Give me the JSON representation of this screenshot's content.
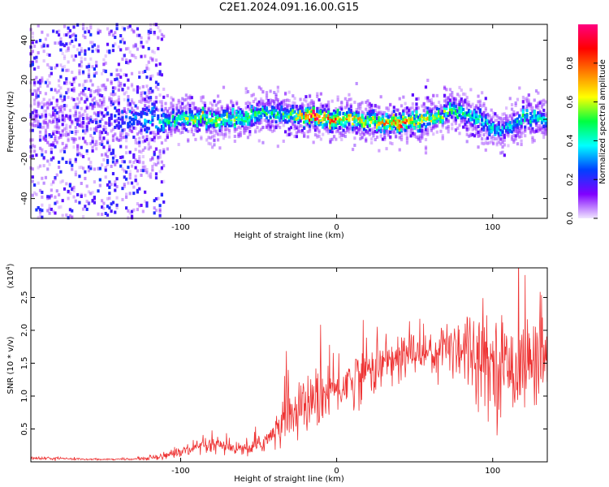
{
  "title": "C2E1.2024.091.16.00.G15",
  "chart_data": [
    {
      "type": "heatmap",
      "xlabel": "Height of straight line (km)",
      "ylabel": "Frequency (Hz)",
      "xlim": [
        -196,
        135
      ],
      "ylim": [
        -50,
        48
      ],
      "x_ticks": [
        -100,
        0,
        100
      ],
      "y_ticks": [
        -40,
        -20,
        0,
        20,
        40
      ],
      "grid": false,
      "colorbar": {
        "label": "Normalized spectral amplitude",
        "range": [
          0,
          1
        ],
        "ticks": [
          "0.0",
          "0.2",
          "0.4",
          "0.6",
          "0.8"
        ],
        "colors": [
          "#f0e6ff",
          "#8000ff",
          "#0040ff",
          "#00ffff",
          "#00ff40",
          "#ffff00",
          "#ff8000",
          "#ff0000",
          "#ff0080"
        ]
      },
      "ridge": {
        "description_x": [
          -196,
          -160,
          -120,
          -90,
          -60,
          -45,
          -30,
          -15,
          0,
          20,
          40,
          60,
          75,
          90,
          105,
          120,
          135
        ],
        "center_frequency": [
          2,
          1,
          0,
          0,
          1,
          3,
          2,
          1,
          0,
          -1,
          -2,
          0,
          5,
          0,
          -6,
          1,
          0
        ],
        "peak_amplitude": [
          0.15,
          0.15,
          0.35,
          0.6,
          0.55,
          0.45,
          0.5,
          1.0,
          0.8,
          0.6,
          0.85,
          0.6,
          0.5,
          0.45,
          0.35,
          0.45,
          0.4
        ]
      }
    },
    {
      "type": "line",
      "xlabel": "Height of straight line (km)",
      "ylabel": "SNR (10 * v/v)",
      "exponent": "(x10",
      "exponent_power": "4",
      "exponent_close": ")",
      "xlim": [
        -196,
        135
      ],
      "ylim": [
        0,
        2.95
      ],
      "x_ticks": [
        -100,
        0,
        100
      ],
      "y_ticks": [
        0.5,
        1.0,
        1.5,
        2.0,
        2.5
      ],
      "y_tick_labels": [
        "0.5",
        "1.0",
        "1.5",
        "2.0",
        "2.5"
      ],
      "color": "#ee3333",
      "series": [
        {
          "x": [
            -196,
            -180,
            -160,
            -140,
            -130,
            -120,
            -110,
            -100,
            -90,
            -80,
            -70,
            -60,
            -50,
            -45,
            -40,
            -35,
            -32,
            -30,
            -28,
            -25,
            -20,
            -15,
            -10,
            -5,
            0,
            10,
            20,
            30,
            40,
            50,
            60,
            70,
            80,
            90,
            100,
            110,
            120,
            130,
            135
          ],
          "y": [
            0.06,
            0.05,
            0.04,
            0.04,
            0.04,
            0.06,
            0.1,
            0.15,
            0.2,
            0.25,
            0.22,
            0.18,
            0.25,
            0.35,
            0.4,
            0.55,
            1.0,
            0.7,
            0.8,
            0.75,
            0.85,
            0.9,
            1.0,
            1.05,
            1.1,
            1.25,
            1.4,
            1.5,
            1.55,
            1.7,
            1.65,
            1.75,
            1.8,
            1.65,
            1.5,
            1.45,
            1.5,
            1.55,
            1.6
          ]
        }
      ],
      "noise_amplitude": [
        0.02,
        0.02,
        0.01,
        0.01,
        0.01,
        0.03,
        0.05,
        0.08,
        0.1,
        0.12,
        0.1,
        0.08,
        0.12,
        0.15,
        0.2,
        0.3,
        0.6,
        0.35,
        0.35,
        0.35,
        0.35,
        0.35,
        0.4,
        0.35,
        0.35,
        0.35,
        0.35,
        0.35,
        0.35,
        0.3,
        0.3,
        0.35,
        0.55,
        0.55,
        0.6,
        0.6,
        0.6,
        0.55,
        0.55
      ]
    }
  ]
}
